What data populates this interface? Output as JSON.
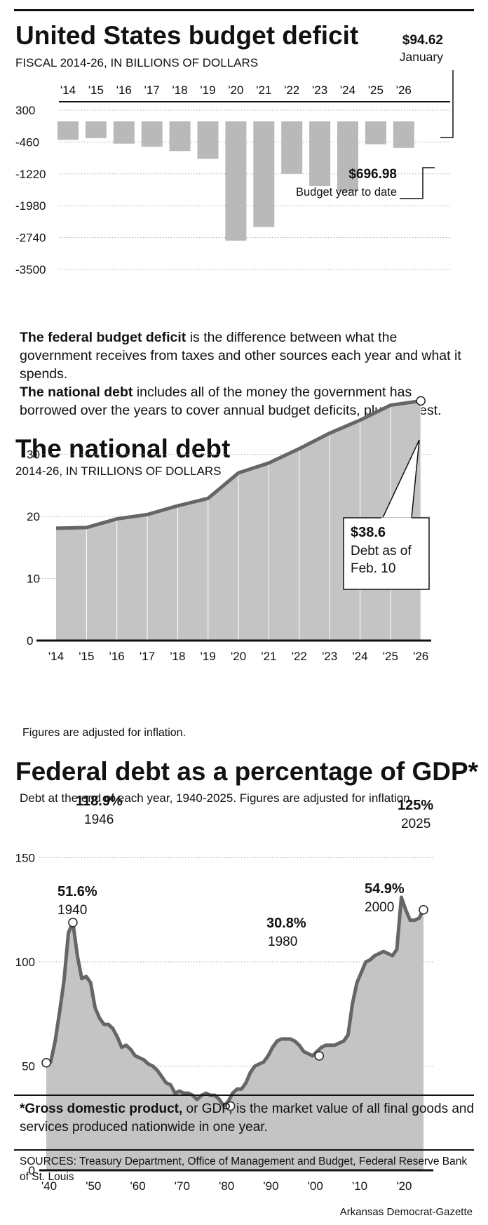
{
  "deficit": {
    "title": "United States budget deficit",
    "subtitle": "FISCAL 2014-26, IN BILLIONS OF DOLLARS",
    "callout_jan_value": "$94.62",
    "callout_jan_label": "January",
    "callout_ytd_value": "$696.98",
    "callout_ytd_label": "Budget year to date"
  },
  "explainer": {
    "p1_bold": "The federal budget deficit",
    "p1_rest": " is the difference between what the government receives from taxes and other sources each year and what it spends.",
    "p2_bold": "The national debt",
    "p2_rest": " includes all of the money the government has borrowed over the years to cover annual budget deficits, plus interest."
  },
  "debt": {
    "title": "The national debt",
    "subtitle": "2014-26, IN TRILLIONS OF DOLLARS",
    "callout_value": "$38.6",
    "callout_line1": "Debt as of",
    "callout_line2": "Feb. 10",
    "note": "Figures are adjusted for inflation."
  },
  "gdp": {
    "title": "Federal debt as a percentage of GDP*",
    "subtitle": "Debt at the end of each year, 1940-2025. Figures are adjusted for inflation.",
    "annotations": [
      {
        "value": "118.9%",
        "year": "1946"
      },
      {
        "value": "51.6%",
        "year": "1940"
      },
      {
        "value": "30.8%",
        "year": "1980"
      },
      {
        "value": "54.9%",
        "year": "2000"
      },
      {
        "value": "125%",
        "year": "2025"
      }
    ]
  },
  "footnote": {
    "bold": "*Gross domestic product,",
    "rest": " or GDP, is the market value of all final goods and services produced nationwide in one year."
  },
  "sources": "SOURCES: Treasury Department, Office of Management and Budget, Federal Reserve Bank of St. Louis",
  "credit": "Arkansas Democrat-Gazette",
  "colors": {
    "bar_fill": "#b9b9b9",
    "line": "#666666",
    "area_fill": "#c4c4c4",
    "ink": "#111111"
  },
  "chart_data": [
    {
      "type": "bar",
      "title": "United States budget deficit",
      "subtitle": "FISCAL 2014-26, IN BILLIONS OF DOLLARS",
      "categories": [
        "'14",
        "'15",
        "'16",
        "'17",
        "'18",
        "'19",
        "'20",
        "'21",
        "'22",
        "'23",
        "'24",
        "'25",
        "'26"
      ],
      "values": [
        -483,
        -439,
        -585,
        -666,
        -779,
        -984,
        -3132,
        -2775,
        -1375,
        -1695,
        -1833,
        -600,
        -697
      ],
      "y_ticks": [
        300,
        -460,
        -1220,
        -1980,
        -2740,
        -3500
      ],
      "y_tick_labels": [
        "300",
        "-460",
        "-1220",
        "-1980",
        "-2740",
        "-3500"
      ],
      "ylim": [
        -3500,
        300
      ],
      "grid": true
    },
    {
      "type": "area",
      "title": "The national debt",
      "subtitle": "2014-26, IN TRILLIONS OF DOLLARS",
      "categories": [
        "'14",
        "'15",
        "'16",
        "'17",
        "'18",
        "'19",
        "'20",
        "'21",
        "'22",
        "'23",
        "'24",
        "'25",
        "'26"
      ],
      "values": [
        18.1,
        18.2,
        19.6,
        20.3,
        21.7,
        22.9,
        27.0,
        28.6,
        30.9,
        33.4,
        35.5,
        37.9,
        38.6
      ],
      "y_ticks": [
        0,
        10,
        20,
        30
      ],
      "ylim": [
        0,
        34
      ],
      "grid": true
    },
    {
      "type": "area",
      "title": "Federal debt as a percentage of GDP*",
      "x_ticks": [
        1940,
        1950,
        1960,
        1970,
        1980,
        1990,
        2000,
        2010,
        2020
      ],
      "x_tick_labels": [
        "'40",
        "'50",
        "'60",
        "'70",
        "'80",
        "'90",
        "'00",
        "'10",
        "'20"
      ],
      "y_ticks": [
        0,
        50,
        100,
        150
      ],
      "xlim": [
        1940,
        2025
      ],
      "ylim": [
        0,
        150
      ],
      "grid": true,
      "x": [
        1940,
        1941,
        1942,
        1943,
        1944,
        1945,
        1946,
        1947,
        1948,
        1949,
        1950,
        1951,
        1952,
        1953,
        1954,
        1955,
        1956,
        1957,
        1958,
        1959,
        1960,
        1961,
        1962,
        1963,
        1964,
        1965,
        1966,
        1967,
        1968,
        1969,
        1970,
        1971,
        1972,
        1973,
        1974,
        1975,
        1976,
        1977,
        1978,
        1979,
        1980,
        1981,
        1982,
        1983,
        1984,
        1985,
        1986,
        1987,
        1988,
        1989,
        1990,
        1991,
        1992,
        1993,
        1994,
        1995,
        1996,
        1997,
        1998,
        1999,
        2000,
        2001,
        2002,
        2003,
        2004,
        2005,
        2006,
        2007,
        2008,
        2009,
        2010,
        2011,
        2012,
        2013,
        2014,
        2015,
        2016,
        2017,
        2018,
        2019,
        2020,
        2021,
        2022,
        2023,
        2024,
        2025
      ],
      "y": [
        51.6,
        52,
        62,
        76,
        91,
        114,
        118.9,
        103,
        92,
        93,
        90,
        78,
        73,
        70,
        70,
        68,
        64,
        59,
        60,
        58,
        55,
        54,
        53,
        51,
        50,
        48,
        45,
        42,
        41,
        37,
        38,
        37,
        37,
        36,
        34,
        36,
        37,
        36,
        36,
        34,
        30.8,
        33,
        37,
        39,
        39,
        42,
        47,
        50,
        51,
        52,
        55,
        59,
        62,
        63,
        63,
        63,
        62,
        60,
        57,
        56,
        54.9,
        57,
        59,
        60,
        60,
        60,
        61,
        62,
        65,
        80,
        90,
        95,
        100,
        101,
        103,
        104,
        105,
        104,
        103,
        106,
        131,
        125,
        120,
        120,
        121,
        125
      ]
    }
  ]
}
